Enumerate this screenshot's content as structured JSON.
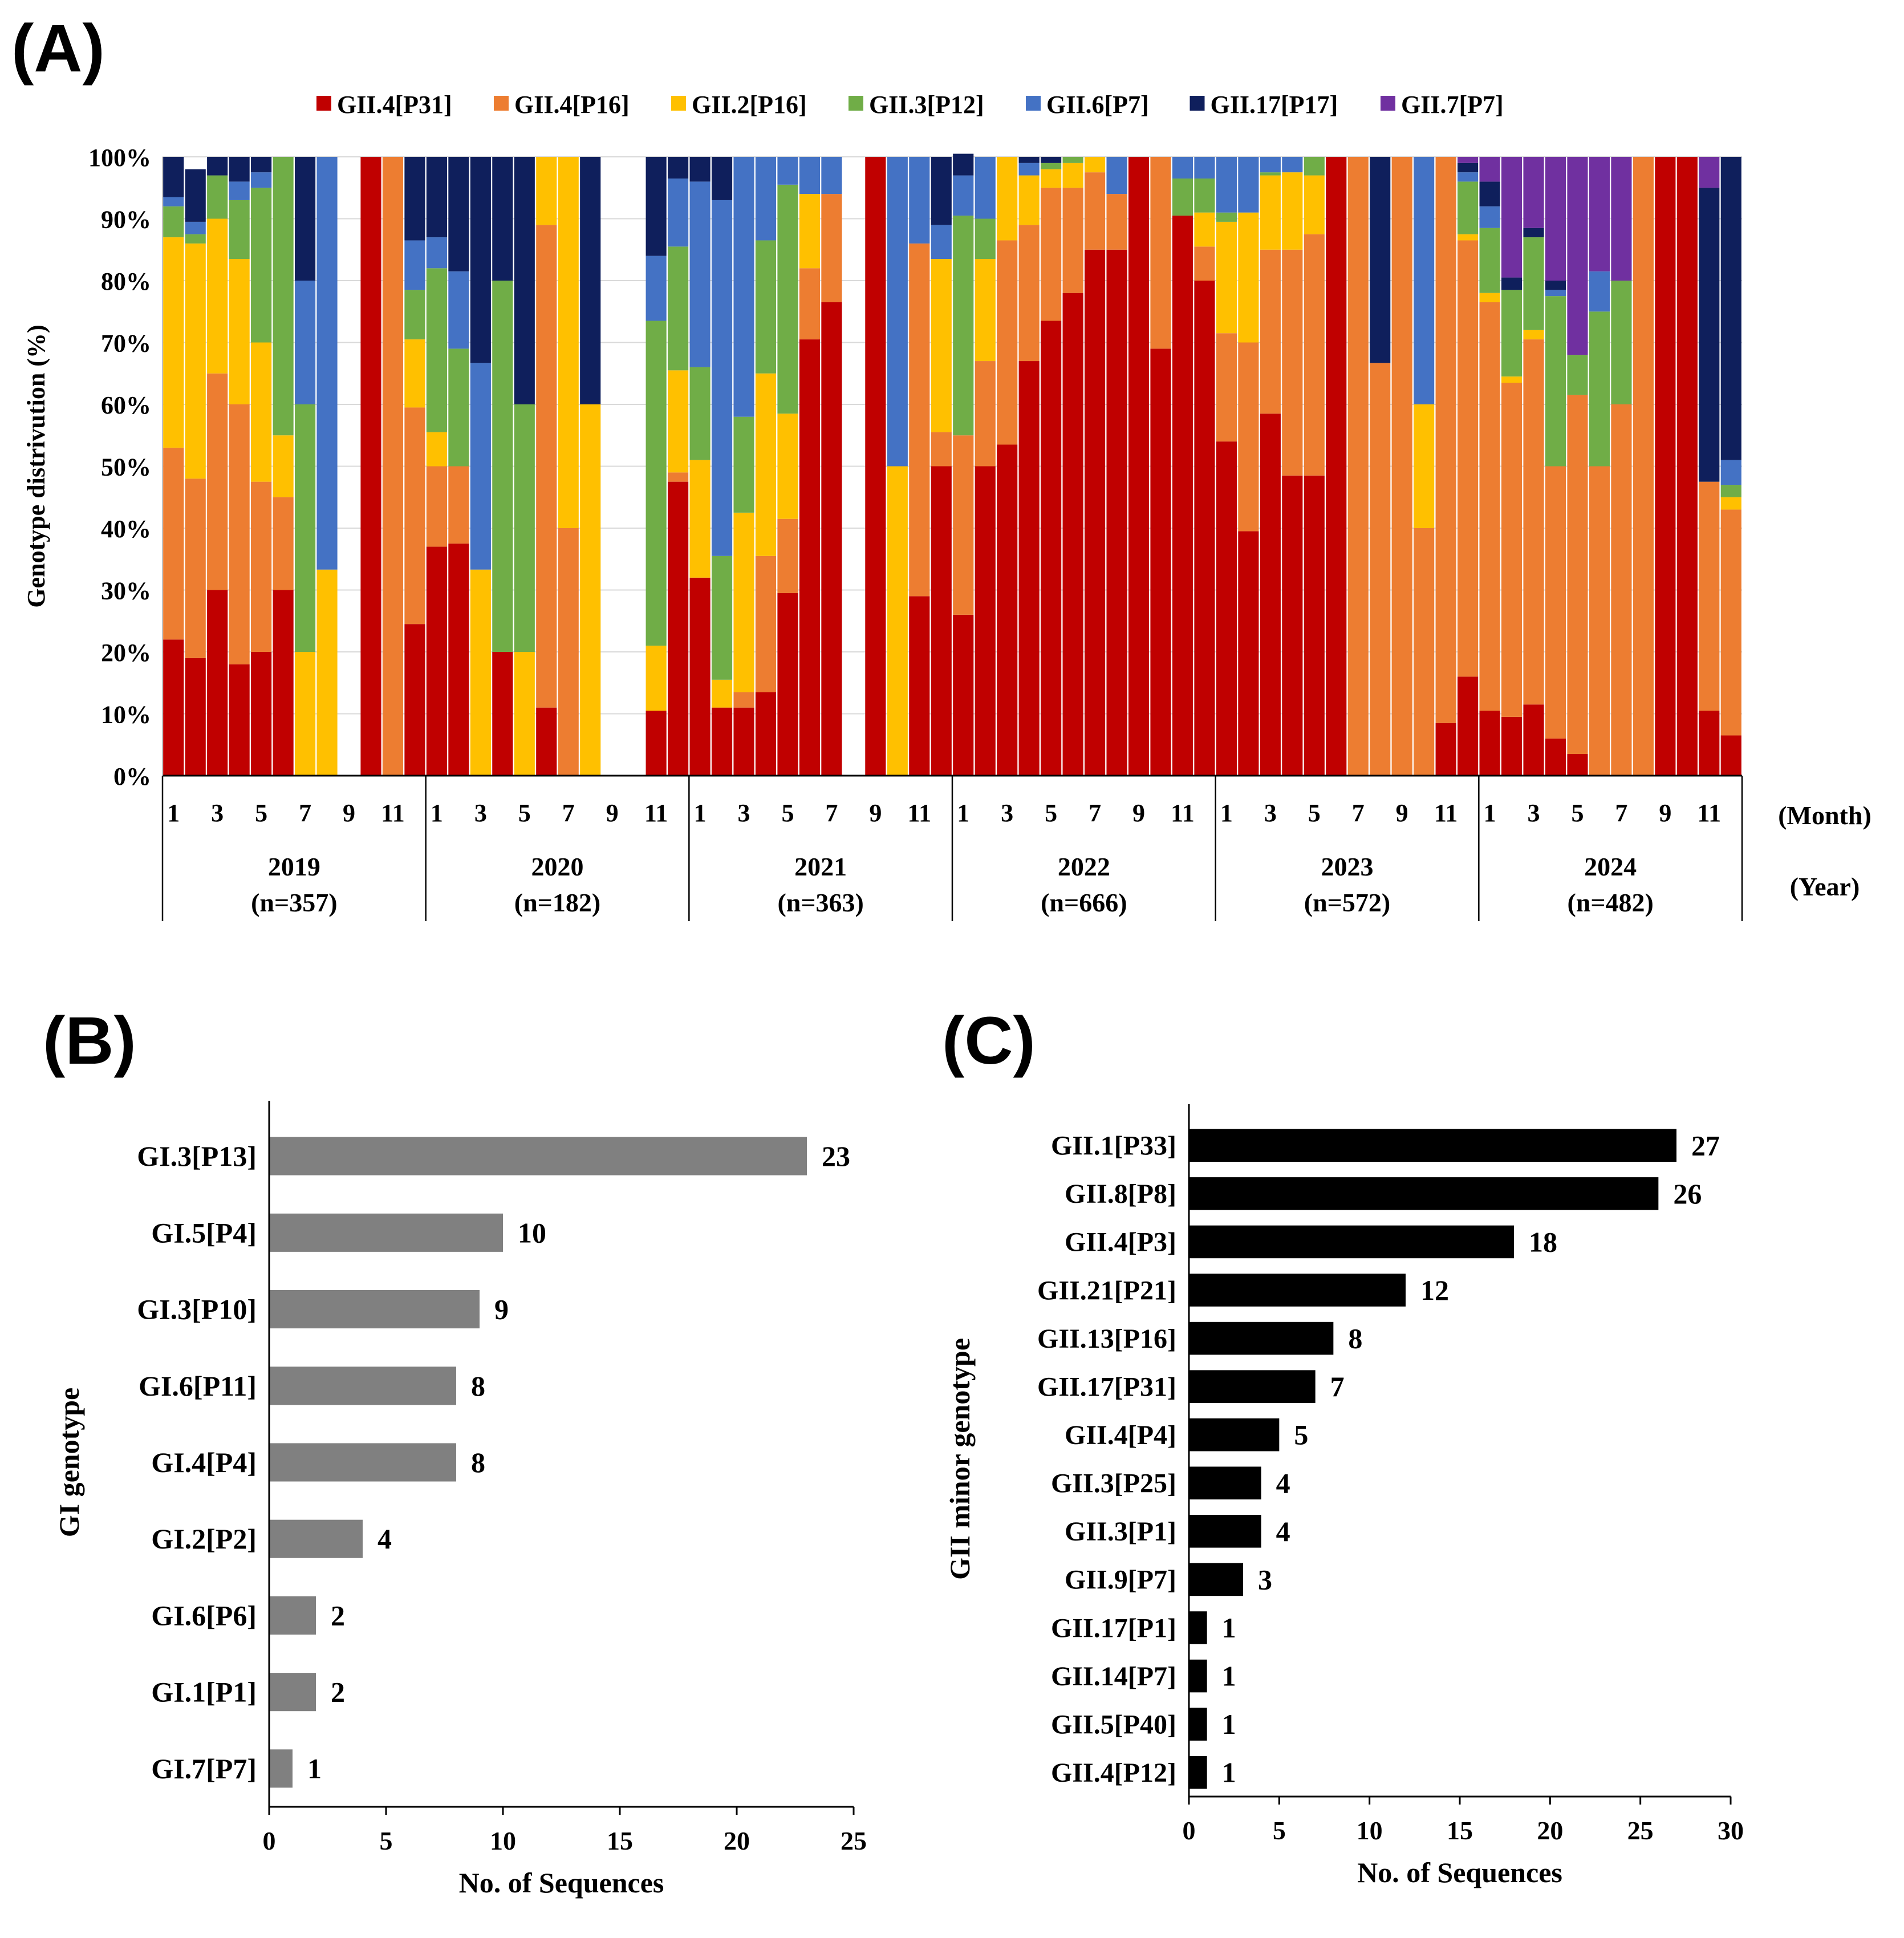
{
  "chart_data": [
    {
      "panel": "(A)",
      "type": "bar",
      "stacked": "percent",
      "ylabel": "Genotype distrivution (%)",
      "ylim": [
        0,
        100
      ],
      "yticks": [
        "0%",
        "10%",
        "20%",
        "30%",
        "40%",
        "50%",
        "60%",
        "70%",
        "80%",
        "90%",
        "100%"
      ],
      "month_unit": "(Month)",
      "year_unit": "(Year)",
      "month_tick_labels": [
        "1",
        "3",
        "5",
        "7",
        "9",
        "11"
      ],
      "years": [
        {
          "year": "2019",
          "n": "(n=357)"
        },
        {
          "year": "2020",
          "n": "(n=182)"
        },
        {
          "year": "2021",
          "n": "(n=363)"
        },
        {
          "year": "2022",
          "n": "(n=666)"
        },
        {
          "year": "2023",
          "n": "(n=572)"
        },
        {
          "year": "2024",
          "n": "(n=482)"
        }
      ],
      "legend": [
        {
          "name": "GII.4[P31]",
          "color": "#C00000"
        },
        {
          "name": "GII.4[P16]",
          "color": "#ED7D31"
        },
        {
          "name": "GII.2[P16]",
          "color": "#FFC000"
        },
        {
          "name": "GII.3[P12]",
          "color": "#70AD47"
        },
        {
          "name": "GII.6[P7]",
          "color": "#4472C4"
        },
        {
          "name": "GII.17[P17]",
          "color": "#0F1F5C"
        },
        {
          "name": "GII.7[P7]",
          "color": "#7030A0"
        }
      ],
      "legend_position": "top-center",
      "months": [
        {
          "label": "2019-01",
          "values": [
            22,
            31,
            34,
            5,
            1.5,
            6.5,
            0
          ]
        },
        {
          "label": "2019-02",
          "values": [
            19,
            29,
            38,
            1.5,
            2,
            8.5,
            0
          ]
        },
        {
          "label": "2019-03",
          "values": [
            30,
            35,
            25,
            7,
            0,
            3,
            0
          ]
        },
        {
          "label": "2019-04",
          "values": [
            18,
            42,
            23.5,
            9.5,
            3,
            4,
            0
          ]
        },
        {
          "label": "2019-05",
          "values": [
            20,
            27.5,
            22.5,
            25,
            2.5,
            2.5,
            0
          ]
        },
        {
          "label": "2019-06",
          "values": [
            30,
            15,
            10,
            45,
            0,
            0,
            0
          ]
        },
        {
          "label": "2019-07",
          "values": [
            0,
            0,
            20,
            40,
            20,
            20,
            0
          ]
        },
        {
          "label": "2019-08",
          "values": [
            0,
            0,
            33.3,
            0,
            66.7,
            0,
            0
          ]
        },
        {
          "label": "2019-09",
          "values": [
            0,
            0,
            0,
            0,
            0,
            0,
            0
          ]
        },
        {
          "label": "2019-10",
          "values": [
            100,
            0,
            0,
            0,
            0,
            0,
            0
          ]
        },
        {
          "label": "2019-11",
          "values": [
            0,
            100,
            0,
            0,
            0,
            0,
            0
          ]
        },
        {
          "label": "2019-12",
          "values": [
            24.5,
            35,
            11,
            8,
            8,
            13.5,
            0
          ]
        },
        {
          "label": "2020-01",
          "values": [
            37,
            13,
            5.5,
            26.5,
            5,
            13,
            0
          ]
        },
        {
          "label": "2020-02",
          "values": [
            37.5,
            12.5,
            0,
            19,
            12.5,
            18.5,
            0
          ]
        },
        {
          "label": "2020-03",
          "values": [
            0,
            0,
            33.3,
            0,
            33.4,
            33.3,
            0
          ]
        },
        {
          "label": "2020-04",
          "values": [
            20,
            0,
            0,
            60,
            0,
            20,
            0
          ]
        },
        {
          "label": "2020-05",
          "values": [
            0,
            0,
            20,
            40,
            0,
            40,
            0
          ]
        },
        {
          "label": "2020-06",
          "values": [
            11,
            78,
            11,
            0,
            0,
            0,
            0
          ]
        },
        {
          "label": "2020-07",
          "values": [
            0,
            40,
            60,
            0,
            0,
            0,
            0
          ]
        },
        {
          "label": "2020-08",
          "values": [
            0,
            0,
            60,
            0,
            0,
            40,
            0
          ]
        },
        {
          "label": "2020-09",
          "values": [
            0,
            0,
            0,
            0,
            0,
            0,
            0
          ]
        },
        {
          "label": "2020-10",
          "values": [
            0,
            0,
            0,
            0,
            0,
            0,
            0
          ]
        },
        {
          "label": "2020-11",
          "values": [
            10.5,
            0,
            10.5,
            52.5,
            10.5,
            16,
            0
          ]
        },
        {
          "label": "2020-12",
          "values": [
            47.5,
            1.5,
            16.5,
            20,
            11,
            3.5,
            0
          ]
        },
        {
          "label": "2021-01",
          "values": [
            32,
            0,
            19,
            15,
            30,
            4,
            0
          ]
        },
        {
          "label": "2021-02",
          "values": [
            11,
            0,
            4.5,
            20,
            57.5,
            7,
            0
          ]
        },
        {
          "label": "2021-03",
          "values": [
            11,
            2.5,
            29,
            15.5,
            42,
            0,
            0
          ]
        },
        {
          "label": "2021-04",
          "values": [
            13.5,
            22,
            29.5,
            21.5,
            13.5,
            0,
            0
          ]
        },
        {
          "label": "2021-05",
          "values": [
            29.5,
            12,
            17,
            37,
            4.5,
            0,
            0
          ]
        },
        {
          "label": "2021-06",
          "values": [
            70.5,
            11.5,
            12,
            0,
            6,
            0,
            0
          ]
        },
        {
          "label": "2021-07",
          "values": [
            76.5,
            17.5,
            0,
            0,
            6,
            0,
            0
          ]
        },
        {
          "label": "2021-08",
          "values": [
            0,
            0,
            0,
            0,
            0,
            0,
            0
          ]
        },
        {
          "label": "2021-09",
          "values": [
            100,
            0,
            0,
            0,
            0,
            0,
            0
          ]
        },
        {
          "label": "2021-10",
          "values": [
            0,
            0,
            50,
            0,
            50,
            0,
            0
          ]
        },
        {
          "label": "2021-11",
          "values": [
            29,
            57,
            0,
            0,
            14,
            0,
            0
          ]
        },
        {
          "label": "2021-12",
          "values": [
            50,
            5.5,
            28,
            0,
            5.5,
            11,
            0
          ]
        },
        {
          "label": "2022-01",
          "values": [
            26,
            29,
            0,
            35.5,
            6.5,
            3.5,
            0
          ]
        },
        {
          "label": "2022-02",
          "values": [
            50,
            17,
            16.5,
            6.5,
            10,
            0,
            0
          ]
        },
        {
          "label": "2022-03",
          "values": [
            53.5,
            33,
            13.5,
            0,
            0,
            0,
            0
          ]
        },
        {
          "label": "2022-04",
          "values": [
            67,
            22,
            8,
            0,
            2,
            1,
            0
          ]
        },
        {
          "label": "2022-05",
          "values": [
            73.5,
            21.5,
            3,
            1,
            0,
            1,
            0
          ]
        },
        {
          "label": "2022-06",
          "values": [
            78,
            17,
            4,
            1,
            0,
            0,
            0
          ]
        },
        {
          "label": "2022-07",
          "values": [
            85,
            12.5,
            2.5,
            0,
            0,
            0,
            0
          ]
        },
        {
          "label": "2022-08",
          "values": [
            85,
            9,
            0,
            0,
            6,
            0,
            0
          ]
        },
        {
          "label": "2022-09",
          "values": [
            100,
            0,
            0,
            0,
            0,
            0,
            0
          ]
        },
        {
          "label": "2022-10",
          "values": [
            69,
            31,
            0,
            0,
            0,
            0,
            0
          ]
        },
        {
          "label": "2022-11",
          "values": [
            90.5,
            0,
            0,
            6,
            3.5,
            0,
            0
          ]
        },
        {
          "label": "2022-12",
          "values": [
            80,
            5.5,
            5.5,
            5.5,
            3.5,
            0,
            0
          ]
        },
        {
          "label": "2023-01",
          "values": [
            54,
            17.5,
            18,
            1.5,
            9,
            0,
            0
          ]
        },
        {
          "label": "2023-02",
          "values": [
            39.5,
            30.5,
            21,
            0,
            9,
            0,
            0
          ]
        },
        {
          "label": "2023-03",
          "values": [
            58.5,
            26.5,
            12,
            0.5,
            2.5,
            0,
            0
          ]
        },
        {
          "label": "2023-04",
          "values": [
            48.5,
            36.5,
            12.5,
            0,
            2.5,
            0,
            0
          ]
        },
        {
          "label": "2023-05",
          "values": [
            48.5,
            39,
            9.5,
            3,
            0,
            0,
            0
          ]
        },
        {
          "label": "2023-06",
          "values": [
            100,
            0,
            0,
            0,
            0,
            0,
            0
          ]
        },
        {
          "label": "2023-07",
          "values": [
            0,
            100,
            0,
            0,
            0,
            0,
            0
          ]
        },
        {
          "label": "2023-08",
          "values": [
            0,
            66.7,
            0,
            0,
            0,
            33.3,
            0
          ]
        },
        {
          "label": "2023-09",
          "values": [
            0,
            100,
            0,
            0,
            0,
            0,
            0
          ]
        },
        {
          "label": "2023-10",
          "values": [
            0,
            40,
            20,
            0,
            40,
            0,
            0
          ]
        },
        {
          "label": "2023-11",
          "values": [
            8.5,
            91.5,
            0,
            0,
            0,
            0,
            0
          ]
        },
        {
          "label": "2023-12",
          "values": [
            16,
            70.5,
            1,
            8.5,
            1.5,
            1.5,
            1
          ]
        },
        {
          "label": "2024-01",
          "values": [
            10.5,
            66,
            1.5,
            10.5,
            3.5,
            4,
            4
          ]
        },
        {
          "label": "2024-02",
          "values": [
            9.5,
            54,
            1,
            14,
            0,
            2,
            19.5
          ]
        },
        {
          "label": "2024-03",
          "values": [
            11.5,
            59,
            1.5,
            15,
            0,
            1.5,
            11.5
          ]
        },
        {
          "label": "2024-04",
          "values": [
            6,
            44,
            0,
            27.5,
            1,
            1.5,
            20
          ]
        },
        {
          "label": "2024-05",
          "values": [
            3.5,
            58,
            0,
            6.5,
            0,
            0,
            32
          ]
        },
        {
          "label": "2024-06",
          "values": [
            0,
            50,
            0,
            25,
            6.5,
            0,
            18.5
          ]
        },
        {
          "label": "2024-07",
          "values": [
            0,
            60,
            0,
            20,
            0,
            0,
            20
          ]
        },
        {
          "label": "2024-08",
          "values": [
            0,
            100,
            0,
            0,
            0,
            0,
            0
          ]
        },
        {
          "label": "2024-09",
          "values": [
            100,
            0,
            0,
            0,
            0,
            0,
            0
          ]
        },
        {
          "label": "2024-10",
          "values": [
            100,
            0,
            0,
            0,
            0,
            0,
            0
          ]
        },
        {
          "label": "2024-11",
          "values": [
            10.5,
            37,
            0,
            0,
            0,
            47.5,
            5
          ]
        },
        {
          "label": "2024-12",
          "values": [
            6.5,
            36.5,
            2,
            2,
            4,
            49,
            0
          ]
        }
      ]
    },
    {
      "panel": "(B)",
      "type": "bar",
      "orientation": "horizontal",
      "ylabel": "GI genotype",
      "xlabel": "No. of Sequences",
      "xlim": [
        0,
        25
      ],
      "xticks": [
        "0",
        "5",
        "10",
        "15",
        "20",
        "25"
      ],
      "bar_color": "#808080",
      "categories": [
        "GI.3[P13]",
        "GI.5[P4]",
        "GI.3[P10]",
        "GI.6[P11]",
        "GI.4[P4]",
        "GI.2[P2]",
        "GI.6[P6]",
        "GI.1[P1]",
        "GI.7[P7]"
      ],
      "values": [
        23,
        10,
        9,
        8,
        8,
        4,
        2,
        2,
        1
      ],
      "value_labels": [
        "23",
        "10",
        "9",
        "8",
        "8",
        "4",
        "2",
        "2",
        "1"
      ]
    },
    {
      "panel": "(C)",
      "type": "bar",
      "orientation": "horizontal",
      "ylabel": "GII minor genotype",
      "xlabel": "No. of Sequences",
      "xlim": [
        0,
        30
      ],
      "xticks": [
        "0",
        "5",
        "10",
        "15",
        "20",
        "25",
        "30"
      ],
      "bar_color": "#000000",
      "categories": [
        "GII.1[P33]",
        "GII.8[P8]",
        "GII.4[P3]",
        "GII.21[P21]",
        "GII.13[P16]",
        "GII.17[P31]",
        "GII.4[P4]",
        "GII.3[P25]",
        "GII.3[P1]",
        "GII.9[P7]",
        "GII.17[P1]",
        "GII.14[P7]",
        "GII.5[P40]",
        "GII.4[P12]"
      ],
      "values": [
        27,
        26,
        18,
        12,
        8,
        7,
        5,
        4,
        4,
        3,
        1,
        1,
        1,
        1
      ],
      "value_labels": [
        "27",
        "26",
        "18",
        "12",
        "8",
        "7",
        "5",
        "4",
        "4",
        "3",
        "1",
        "1",
        "1",
        "1"
      ]
    }
  ]
}
